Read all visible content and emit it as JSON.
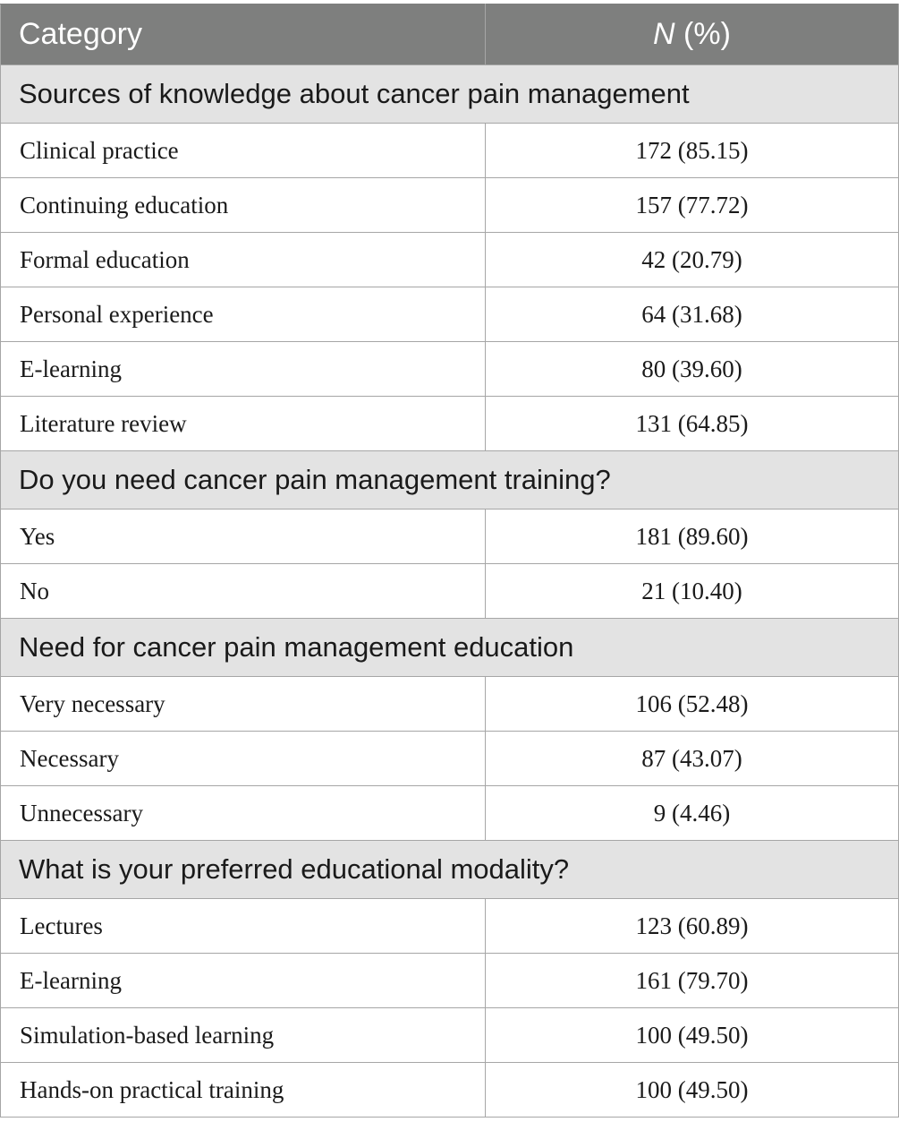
{
  "header": {
    "category": "Category",
    "n_italic": "N",
    "n_suffix": " (%)"
  },
  "sections": [
    {
      "title": "Sources of knowledge about cancer pain management",
      "rows": [
        {
          "label": "Clinical practice",
          "value": "172 (85.15)"
        },
        {
          "label": "Continuing education",
          "value": "157 (77.72)"
        },
        {
          "label": "Formal education",
          "value": "42 (20.79)"
        },
        {
          "label": "Personal experience",
          "value": "64 (31.68)"
        },
        {
          "label": "E-learning",
          "value": "80 (39.60)"
        },
        {
          "label": "Literature review",
          "value": "131 (64.85)"
        }
      ]
    },
    {
      "title": "Do you need cancer pain management training?",
      "rows": [
        {
          "label": "Yes",
          "value": "181 (89.60)"
        },
        {
          "label": "No",
          "value": "21 (10.40)"
        }
      ]
    },
    {
      "title": "Need for cancer pain management education",
      "rows": [
        {
          "label": "Very necessary",
          "value": "106 (52.48)"
        },
        {
          "label": "Necessary",
          "value": "87 (43.07)"
        },
        {
          "label": "Unnecessary",
          "value": "9 (4.46)"
        }
      ]
    },
    {
      "title": "What is your preferred educational modality?",
      "rows": [
        {
          "label": "Lectures",
          "value": "123 (60.89)"
        },
        {
          "label": "E-learning",
          "value": "161 (79.70)"
        },
        {
          "label": "Simulation-based learning",
          "value": "100 (49.50)"
        },
        {
          "label": "Hands-on practical training",
          "value": "100 (49.50)"
        }
      ]
    }
  ]
}
